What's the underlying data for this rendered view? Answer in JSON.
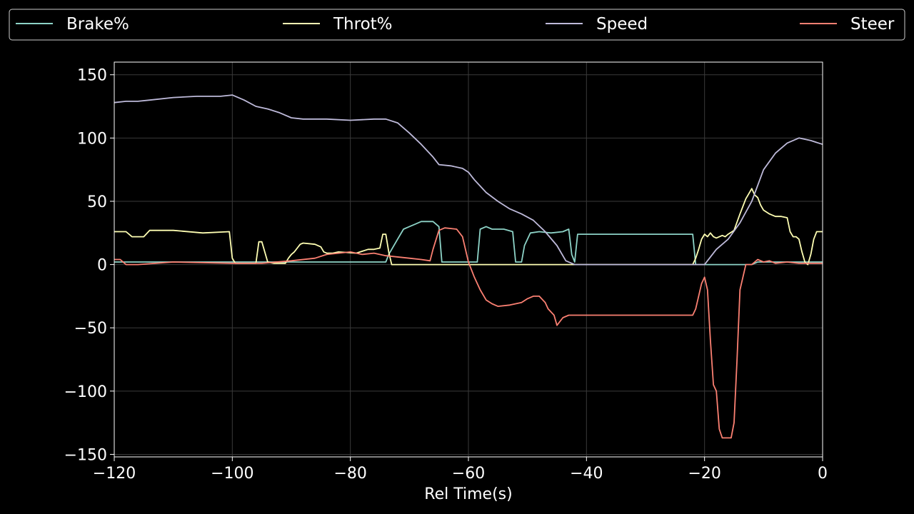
{
  "chart_data": {
    "type": "line",
    "title": "",
    "xlabel": "Rel Time(s)",
    "ylabel": "",
    "xlim": [
      -120,
      0
    ],
    "ylim": [
      -152,
      160
    ],
    "xticks": [
      -120,
      -100,
      -80,
      -60,
      -40,
      -20,
      0
    ],
    "xtick_labels": [
      "−120",
      "−100",
      "−80",
      "−60",
      "−40",
      "−20",
      "0"
    ],
    "yticks": [
      150,
      100,
      50,
      0,
      -50,
      -100,
      -150
    ],
    "ytick_labels": [
      "150",
      "100",
      "50",
      "0",
      "−50",
      "−100",
      "−150"
    ],
    "grid": true,
    "legend": "top, spanning full width",
    "series": [
      {
        "name": "Brake%",
        "color": "#8dd3c7",
        "x": [
          -120,
          -74,
          -73.5,
          -72,
          -71,
          -70,
          -69,
          -68,
          -66,
          -65,
          -64.5,
          -58.5,
          -58,
          -57,
          -56,
          -54,
          -52.5,
          -52,
          -51,
          -50.5,
          -49.5,
          -48,
          -46,
          -44,
          -43,
          -42.5,
          -42,
          -41.5,
          -40,
          -30,
          -22,
          -21.5,
          -20,
          -12,
          -11,
          0
        ],
        "values": [
          2,
          2,
          8,
          20,
          28,
          30,
          32,
          34,
          34,
          30,
          2,
          2,
          28,
          30,
          28,
          28,
          26,
          2,
          2,
          15,
          25,
          26,
          25,
          26,
          28,
          8,
          2,
          24,
          24,
          24,
          24,
          0,
          0,
          0,
          2,
          2
        ]
      },
      {
        "name": "Throt%",
        "color": "#ffffb3",
        "x": [
          -120,
          -118,
          -117,
          -115,
          -114,
          -110,
          -105,
          -100.5,
          -100,
          -99.5,
          -96,
          -95.5,
          -95,
          -94.5,
          -94,
          -93,
          -91,
          -90.5,
          -90,
          -89.5,
          -89,
          -88.5,
          -88,
          -86,
          -85,
          -84.5,
          -84,
          -83,
          -82,
          -79,
          -77,
          -76,
          -75,
          -74.5,
          -74,
          -73.5,
          -73,
          -60,
          -40,
          -22,
          -21.5,
          -21,
          -20.5,
          -20,
          -19.5,
          -19,
          -18.5,
          -18,
          -17,
          -16.5,
          -16,
          -15,
          -14,
          -13,
          -12.5,
          -12,
          -11.5,
          -11,
          -10.5,
          -10,
          -9,
          -8,
          -7,
          -6,
          -5.5,
          -5,
          -4.5,
          -4,
          -3.5,
          -3,
          -2.5,
          -2,
          -1.5,
          -1,
          -0.5,
          0
        ],
        "values": [
          26,
          26,
          22,
          22,
          27,
          27,
          25,
          26,
          5,
          1,
          1,
          18,
          18,
          10,
          2,
          1,
          1,
          5,
          8,
          10,
          13,
          16,
          17,
          16,
          14,
          10,
          9,
          9,
          10,
          9,
          12,
          12,
          13,
          24,
          24,
          10,
          0,
          0,
          0,
          0,
          5,
          12,
          20,
          24,
          22,
          25,
          22,
          21,
          23,
          22,
          24,
          27,
          40,
          52,
          56,
          60,
          55,
          53,
          47,
          43,
          40,
          38,
          38,
          37,
          26,
          22,
          22,
          20,
          10,
          2,
          0,
          8,
          20,
          26,
          26,
          26
        ],
        "comment": ""
      },
      {
        "name": "Speed",
        "color": "#bebada",
        "x": [
          -120,
          -118,
          -116,
          -114,
          -110,
          -106,
          -102,
          -100,
          -98,
          -96,
          -94,
          -92,
          -90,
          -88,
          -86,
          -84,
          -80,
          -76,
          -74,
          -72,
          -70,
          -68,
          -66,
          -65,
          -63,
          -61,
          -60,
          -59,
          -57,
          -55,
          -53,
          -51,
          -49,
          -47,
          -45,
          -43.5,
          -42,
          -41,
          -30,
          -20,
          -18,
          -16,
          -14,
          -12,
          -10,
          -8,
          -6,
          -4,
          -2,
          0
        ],
        "values": [
          128,
          129,
          129,
          130,
          132,
          133,
          133,
          134,
          130,
          125,
          123,
          120,
          116,
          115,
          115,
          115,
          114,
          115,
          115,
          112,
          104,
          95,
          85,
          79,
          78,
          76,
          73,
          67,
          57,
          50,
          44,
          40,
          35,
          26,
          15,
          3,
          0,
          0,
          0,
          0,
          12,
          20,
          33,
          50,
          75,
          88,
          96,
          100,
          98,
          95
        ]
      },
      {
        "name": "Steer",
        "color": "#fb8072",
        "x": [
          -120,
          -119,
          -118,
          -116,
          -110,
          -100,
          -95,
          -90,
          -86,
          -84,
          -82,
          -80,
          -78,
          -76,
          -74,
          -70,
          -68,
          -66.5,
          -66,
          -65,
          -64,
          -62,
          -61,
          -60,
          -59,
          -58,
          -57,
          -56,
          -55,
          -53,
          -51,
          -50,
          -49,
          -48,
          -47,
          -46.5,
          -45.5,
          -45,
          -44,
          -43,
          -40,
          -30,
          -22,
          -21.5,
          -21,
          -20.5,
          -20,
          -19.5,
          -19,
          -18.5,
          -18,
          -17.5,
          -17,
          -16.5,
          -15.5,
          -15,
          -14.5,
          -14,
          -13.5,
          -13,
          -12,
          -11,
          -10,
          -9,
          -8,
          -6,
          -4,
          -2,
          0
        ],
        "values": [
          4,
          4,
          0,
          0,
          2,
          1,
          1,
          3,
          5,
          8,
          9,
          10,
          8,
          9,
          7,
          5,
          4,
          3,
          12,
          27,
          29,
          28,
          22,
          2,
          -10,
          -20,
          -28,
          -31,
          -33,
          -32,
          -30,
          -27,
          -25,
          -25,
          -30,
          -35,
          -40,
          -48,
          -42,
          -40,
          -40,
          -40,
          -40,
          -35,
          -25,
          -15,
          -10,
          -20,
          -60,
          -95,
          -100,
          -130,
          -137,
          -137,
          -137,
          -125,
          -76,
          -20,
          -10,
          0,
          0,
          4,
          2,
          3,
          1,
          2,
          1,
          1,
          1
        ]
      }
    ]
  }
}
